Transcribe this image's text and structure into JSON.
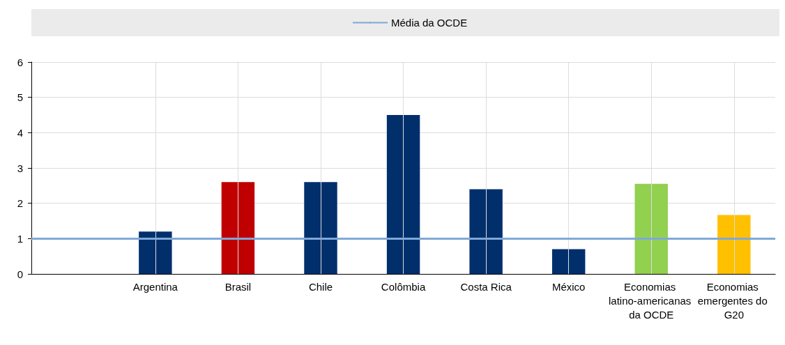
{
  "chart_data": {
    "type": "bar",
    "categories": [
      null,
      "Argentina",
      "Brasil",
      "Chile",
      "Colômbia",
      "Costa Rica",
      "México",
      "Economias latino-americanas da OCDE",
      "Economias emergentes do G20"
    ],
    "values": [
      null,
      1.2,
      2.6,
      2.6,
      4.5,
      2.4,
      0.7,
      2.55,
      1.67
    ],
    "colors": [
      "#002f6c",
      "#002f6c",
      "#c00000",
      "#002f6c",
      "#002f6c",
      "#002f6c",
      "#002f6c",
      "#92d050",
      "#ffc000"
    ],
    "ylim": [
      0,
      6
    ],
    "yticks": [
      0,
      1,
      2,
      3,
      4,
      5,
      6
    ],
    "grid": true,
    "legend": "top",
    "ref_lines": [
      {
        "axis": "y",
        "value": 1,
        "label": "Média da OCDE",
        "color": "#7fa8d8"
      }
    ]
  }
}
